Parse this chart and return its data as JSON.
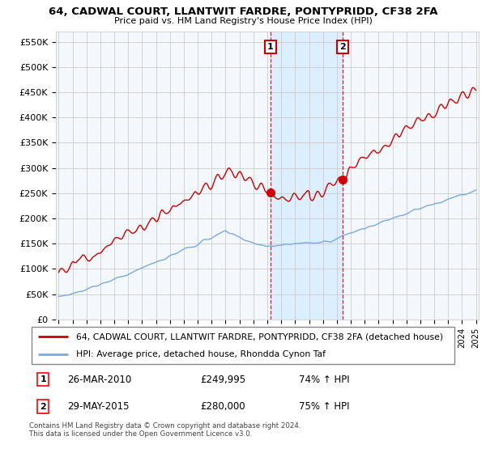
{
  "title1": "64, CADWAL COURT, LLANTWIT FARDRE, PONTYPRIDD, CF38 2FA",
  "title2": "Price paid vs. HM Land Registry's House Price Index (HPI)",
  "legend_line1": "64, CADWAL COURT, LLANTWIT FARDRE, PONTYPRIDD, CF38 2FA (detached house)",
  "legend_line2": "HPI: Average price, detached house, Rhondda Cynon Taf",
  "footer": "Contains HM Land Registry data © Crown copyright and database right 2024.\nThis data is licensed under the Open Government Licence v3.0.",
  "sale1": {
    "label": "1",
    "date": "26-MAR-2010",
    "price": 249995,
    "hpi_pct": "74%",
    "year": 2010.23
  },
  "sale2": {
    "label": "2",
    "date": "29-MAY-2015",
    "price": 280000,
    "hpi_pct": "75%",
    "year": 2015.42
  },
  "red_color": "#cc0000",
  "blue_color": "#7aaadd",
  "shade_color": "#ddeeff",
  "background_color": "#ffffff",
  "plot_bg_color": "#f4f8fc",
  "grid_color": "#cccccc",
  "ylim": [
    0,
    570000
  ],
  "xlim": [
    1994.8,
    2025.2
  ],
  "yticks": [
    0,
    50000,
    100000,
    150000,
    200000,
    250000,
    300000,
    350000,
    400000,
    450000,
    500000,
    550000
  ],
  "ytick_labels": [
    "£0",
    "£50K",
    "£100K",
    "£150K",
    "£200K",
    "£250K",
    "£300K",
    "£350K",
    "£400K",
    "£450K",
    "£500K",
    "£550K"
  ]
}
